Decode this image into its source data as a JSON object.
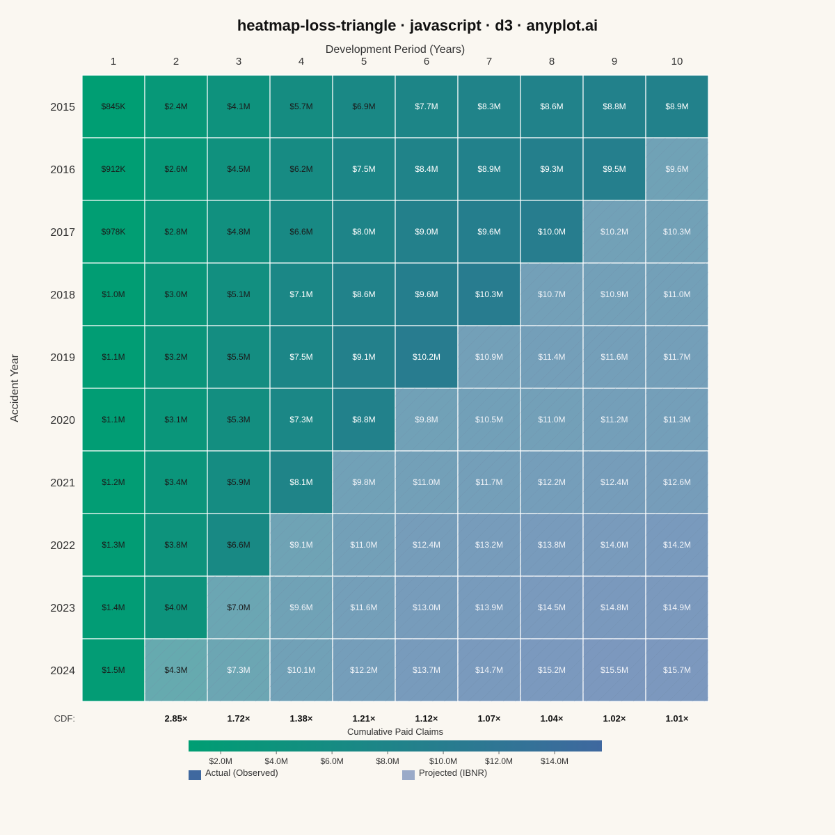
{
  "chart_data": {
    "type": "heatmap",
    "title": "heatmap-loss-triangle · javascript · d3 · anyplot.ai",
    "xlabel": "Development Period (Years)",
    "ylabel": "Accident Year",
    "x": [
      "1",
      "2",
      "3",
      "4",
      "5",
      "6",
      "7",
      "8",
      "9",
      "10"
    ],
    "y": [
      "2015",
      "2016",
      "2017",
      "2018",
      "2019",
      "2020",
      "2021",
      "2022",
      "2023",
      "2024"
    ],
    "values": [
      [
        0.845,
        2.4,
        4.1,
        5.7,
        6.9,
        7.7,
        8.3,
        8.6,
        8.8,
        8.9
      ],
      [
        0.912,
        2.6,
        4.5,
        6.2,
        7.5,
        8.4,
        8.9,
        9.3,
        9.5,
        9.6
      ],
      [
        0.978,
        2.8,
        4.8,
        6.6,
        8.0,
        9.0,
        9.6,
        10.0,
        10.2,
        10.3
      ],
      [
        1.0,
        3.0,
        5.1,
        7.1,
        8.6,
        9.6,
        10.3,
        10.7,
        10.9,
        11.0
      ],
      [
        1.1,
        3.2,
        5.5,
        7.5,
        9.1,
        10.2,
        10.9,
        11.4,
        11.6,
        11.7
      ],
      [
        1.1,
        3.1,
        5.3,
        7.3,
        8.8,
        9.8,
        10.5,
        11.0,
        11.2,
        11.3
      ],
      [
        1.2,
        3.4,
        5.9,
        8.1,
        9.8,
        11.0,
        11.7,
        12.2,
        12.4,
        12.6
      ],
      [
        1.3,
        3.8,
        6.6,
        9.1,
        11.0,
        12.4,
        13.2,
        13.8,
        14.0,
        14.2
      ],
      [
        1.4,
        4.0,
        7.0,
        9.6,
        11.6,
        13.0,
        13.9,
        14.5,
        14.8,
        14.9
      ],
      [
        1.5,
        4.3,
        7.3,
        10.1,
        12.2,
        13.7,
        14.7,
        15.2,
        15.5,
        15.7
      ]
    ],
    "value_unit": "$M",
    "labels": [
      [
        "$845K",
        "$2.4M",
        "$4.1M",
        "$5.7M",
        "$6.9M",
        "$7.7M",
        "$8.3M",
        "$8.6M",
        "$8.8M",
        "$8.9M"
      ],
      [
        "$912K",
        "$2.6M",
        "$4.5M",
        "$6.2M",
        "$7.5M",
        "$8.4M",
        "$8.9M",
        "$9.3M",
        "$9.5M",
        "$9.6M"
      ],
      [
        "$978K",
        "$2.8M",
        "$4.8M",
        "$6.6M",
        "$8.0M",
        "$9.0M",
        "$9.6M",
        "$10.0M",
        "$10.2M",
        "$10.3M"
      ],
      [
        "$1.0M",
        "$3.0M",
        "$5.1M",
        "$7.1M",
        "$8.6M",
        "$9.6M",
        "$10.3M",
        "$10.7M",
        "$10.9M",
        "$11.0M"
      ],
      [
        "$1.1M",
        "$3.2M",
        "$5.5M",
        "$7.5M",
        "$9.1M",
        "$10.2M",
        "$10.9M",
        "$11.4M",
        "$11.6M",
        "$11.7M"
      ],
      [
        "$1.1M",
        "$3.1M",
        "$5.3M",
        "$7.3M",
        "$8.8M",
        "$9.8M",
        "$10.5M",
        "$11.0M",
        "$11.2M",
        "$11.3M"
      ],
      [
        "$1.2M",
        "$3.4M",
        "$5.9M",
        "$8.1M",
        "$9.8M",
        "$11.0M",
        "$11.7M",
        "$12.2M",
        "$12.4M",
        "$12.6M"
      ],
      [
        "$1.3M",
        "$3.8M",
        "$6.6M",
        "$9.1M",
        "$11.0M",
        "$12.4M",
        "$13.2M",
        "$13.8M",
        "$14.0M",
        "$14.2M"
      ],
      [
        "$1.4M",
        "$4.0M",
        "$7.0M",
        "$9.6M",
        "$11.6M",
        "$13.0M",
        "$13.9M",
        "$14.5M",
        "$14.8M",
        "$14.9M"
      ],
      [
        "$1.5M",
        "$4.3M",
        "$7.3M",
        "$10.1M",
        "$12.2M",
        "$13.7M",
        "$14.7M",
        "$15.2M",
        "$15.5M",
        "$15.7M"
      ]
    ],
    "observed_diagonal_max_index": 9,
    "cdf_label": "CDF:",
    "cdf": [
      "",
      "2.85×",
      "1.72×",
      "1.38×",
      "1.21×",
      "1.12×",
      "1.07×",
      "1.04×",
      "1.02×",
      "1.01×"
    ],
    "colorbar": {
      "title": "Cumulative Paid Claims",
      "range": [
        0.845,
        15.7
      ],
      "ticks": [
        2,
        4,
        6,
        8,
        10,
        12,
        14
      ],
      "tick_labels": [
        "$2.0M",
        "$4.0M",
        "$6.0M",
        "$8.0M",
        "$10.0M",
        "$12.0M",
        "$14.0M"
      ],
      "color_low": "#009E73",
      "color_high": "#3F689F"
    },
    "legend": {
      "items": [
        {
          "label": "Actual (Observed)",
          "color": "#3F689F"
        },
        {
          "label": "Projected (IBNR)",
          "color": "#9AAAC8"
        }
      ]
    },
    "projected_overlay_color": "#AEBFD8",
    "grid_lines": "white"
  }
}
